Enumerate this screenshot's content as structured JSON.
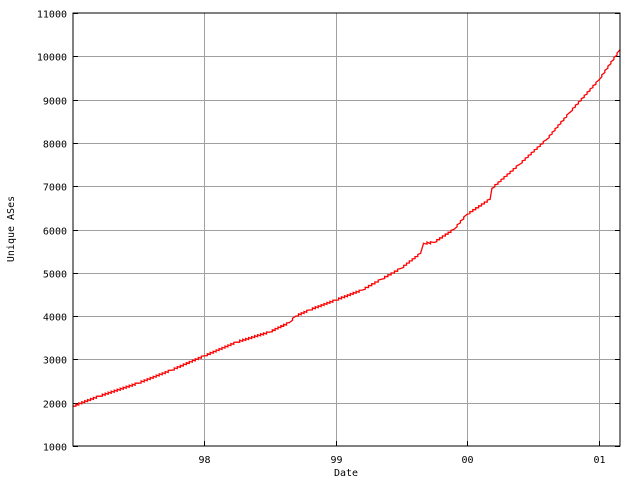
{
  "chart_data": {
    "type": "line",
    "title": "",
    "xlabel": "Date",
    "ylabel": "Unique ASes",
    "xlim": [
      "1997-01-01",
      "2001-03-01"
    ],
    "ylim": [
      1000,
      11000
    ],
    "x_ticks": [
      {
        "date": "1998-01-01",
        "label": "98"
      },
      {
        "date": "1999-01-01",
        "label": "99"
      },
      {
        "date": "2000-01-01",
        "label": "00"
      },
      {
        "date": "2001-01-01",
        "label": "01"
      }
    ],
    "y_ticks": [
      1000,
      2000,
      3000,
      4000,
      5000,
      6000,
      7000,
      8000,
      9000,
      10000,
      11000
    ],
    "grid": true,
    "series": [
      {
        "color": "#ff0000",
        "points": [
          [
            "1997-01-01",
            1920
          ],
          [
            "1997-03-15",
            2150
          ],
          [
            "1997-07-01",
            2450
          ],
          [
            "1997-10-01",
            2750
          ],
          [
            "1998-01-01",
            3080
          ],
          [
            "1998-04-01",
            3400
          ],
          [
            "1998-07-01",
            3630
          ],
          [
            "1998-08-25",
            3850
          ],
          [
            "1998-09-12",
            4000
          ],
          [
            "1998-10-20",
            4140
          ],
          [
            "1999-01-01",
            4370
          ],
          [
            "1999-03-15",
            4600
          ],
          [
            "1999-05-08",
            4850
          ],
          [
            "1999-07-01",
            5100
          ],
          [
            "1999-08-25",
            5450
          ],
          [
            "1999-09-02",
            5680
          ],
          [
            "1999-10-01",
            5700
          ],
          [
            "1999-11-25",
            6000
          ],
          [
            "2000-01-01",
            6350
          ],
          [
            "2000-03-05",
            6700
          ],
          [
            "2000-03-10",
            6950
          ],
          [
            "2000-05-25",
            7500
          ],
          [
            "2000-08-08",
            8070
          ],
          [
            "2000-10-12",
            8700
          ],
          [
            "2001-01-01",
            9450
          ],
          [
            "2001-03-01",
            10150
          ]
        ]
      }
    ]
  }
}
